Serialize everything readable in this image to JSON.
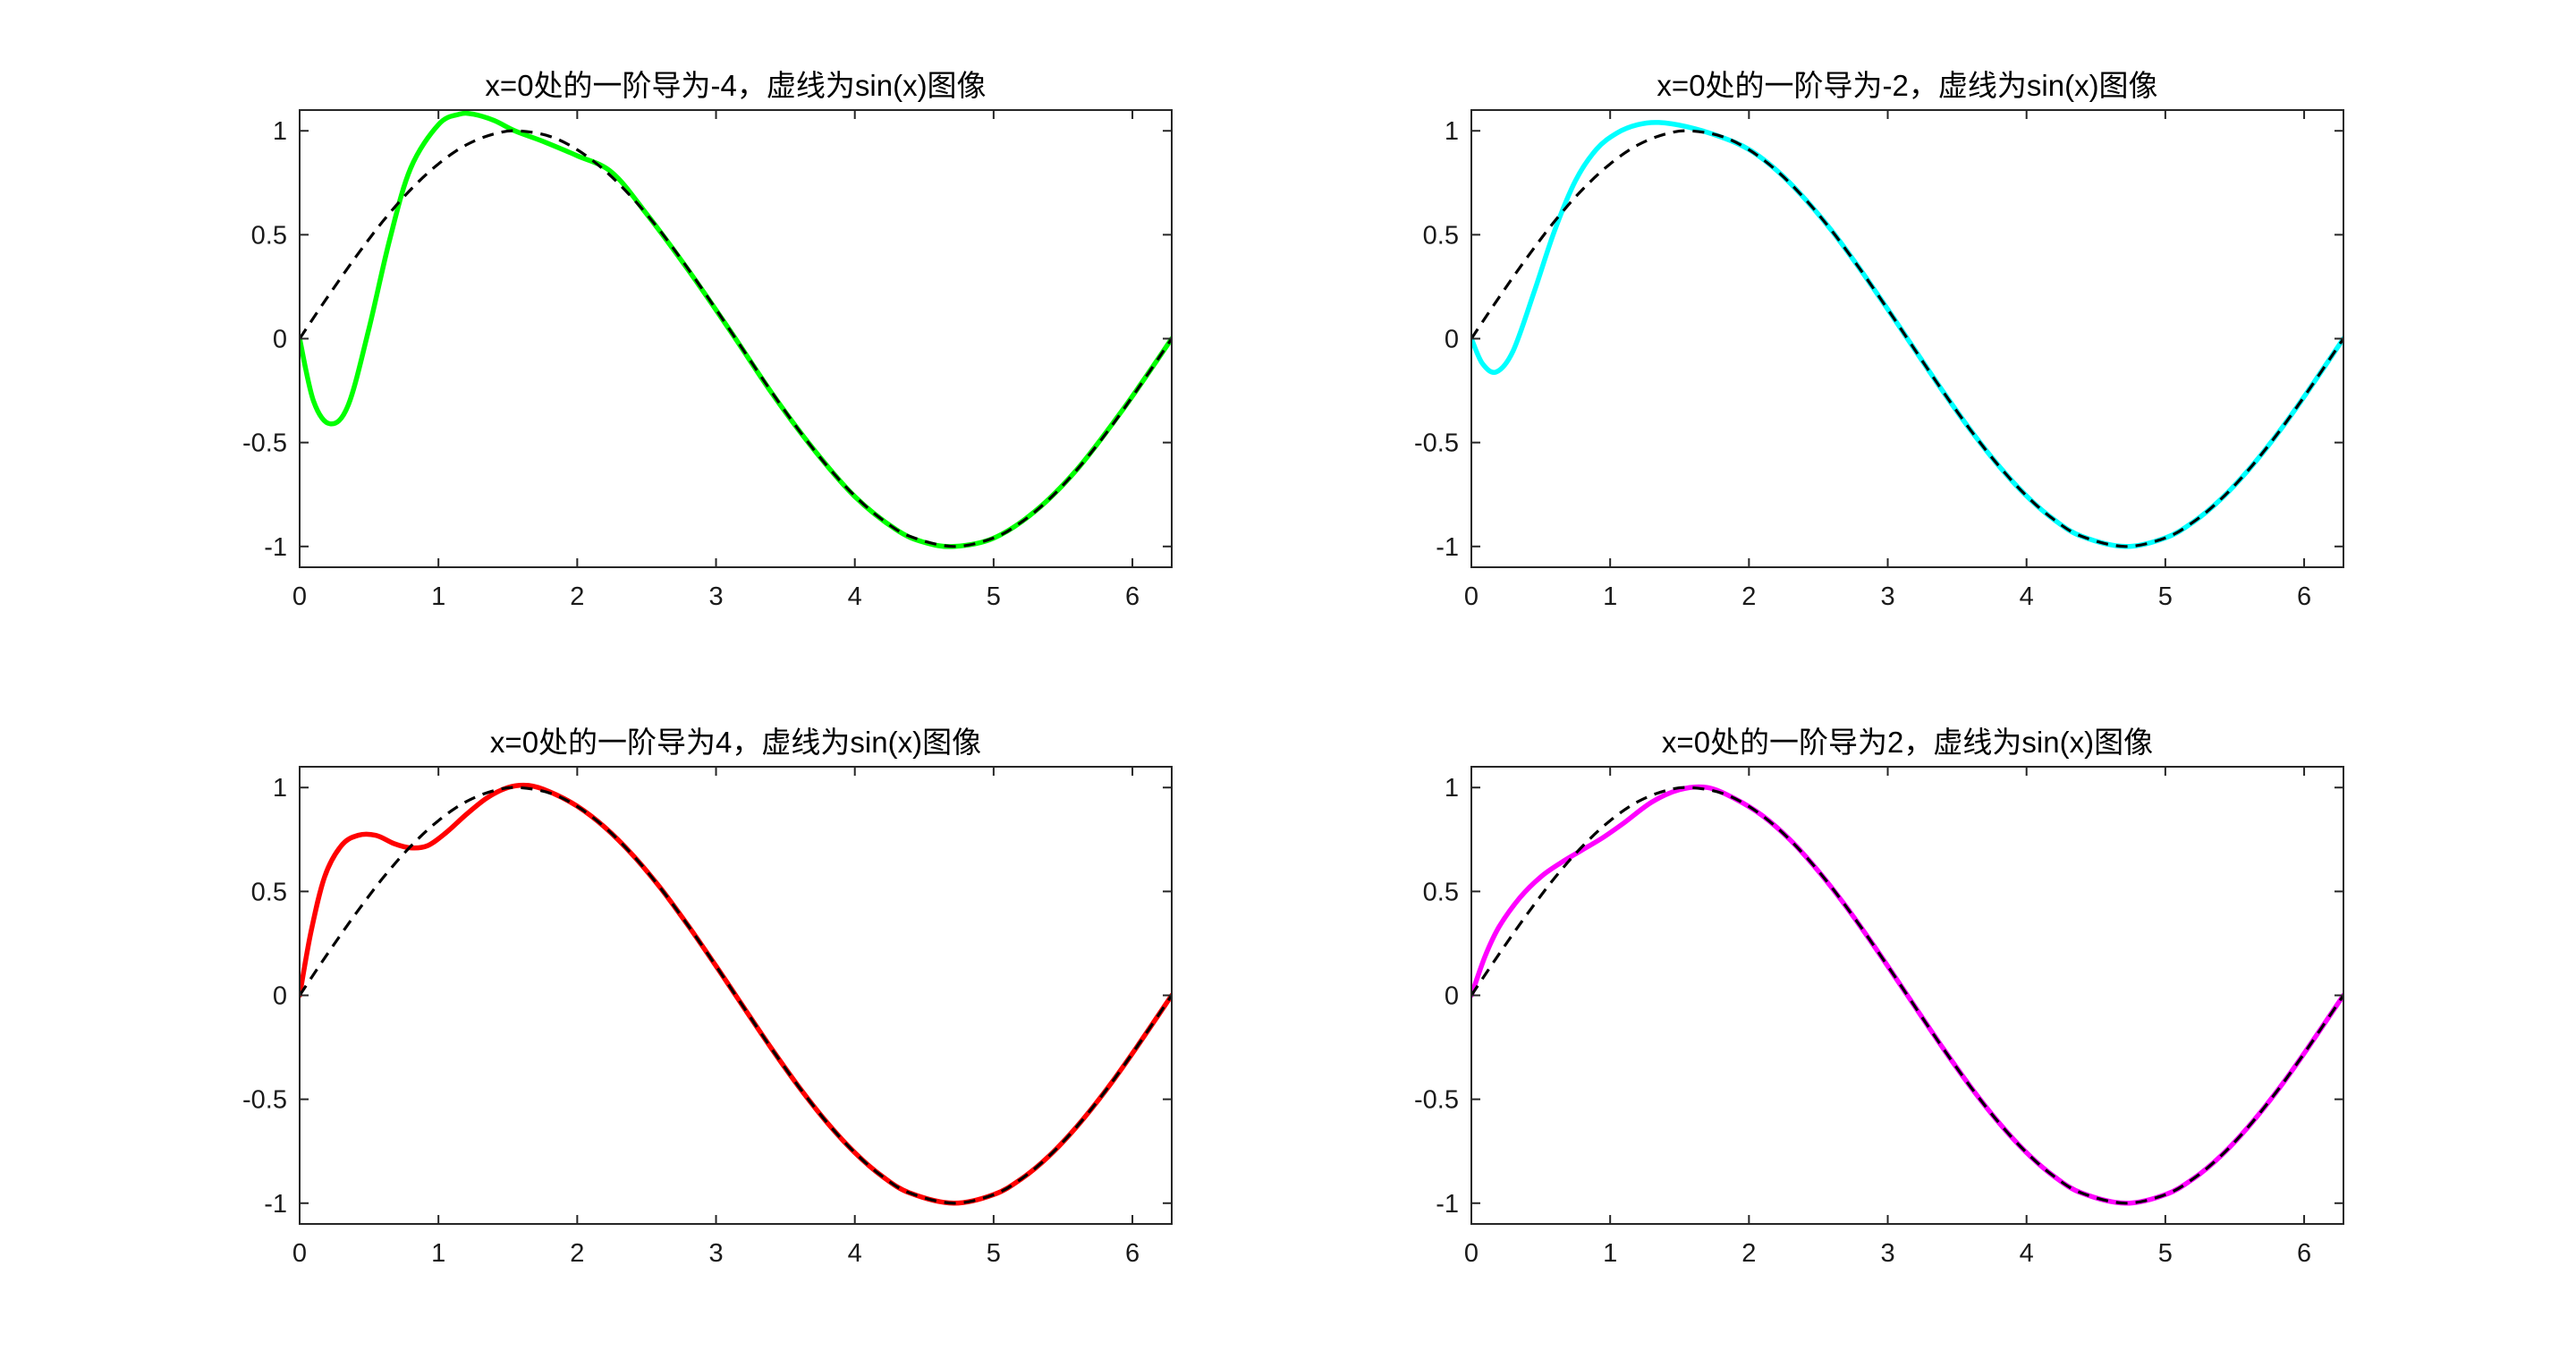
{
  "figure": {
    "background": "#ffffff",
    "reference_color": "#000000"
  },
  "chart_data": [
    {
      "type": "line",
      "title": "x=0处的一阶导为-4，虚线为sin(x)图像",
      "xlim": [
        0,
        6.2832
      ],
      "ylim": [
        -1.1,
        1.1
      ],
      "xticks": [
        0,
        1,
        2,
        3,
        4,
        5,
        6
      ],
      "xtick_labels": [
        "0",
        "1",
        "2",
        "3",
        "4",
        "5",
        "6"
      ],
      "yticks": [
        -1,
        -0.5,
        0,
        0.5,
        1
      ],
      "ytick_labels": [
        "-1",
        "-0.5",
        "0",
        "0.5",
        "1"
      ],
      "grid": false,
      "series": [
        {
          "color": "#00ff00",
          "style": "solid",
          "x": [
            0,
            0.1,
            0.22,
            0.35,
            0.5,
            0.65,
            0.8,
            1.0,
            1.15,
            1.25,
            1.4,
            1.55,
            1.75,
            2.0,
            2.25,
            2.5,
            2.8,
            3.1,
            3.4,
            3.7,
            4.0,
            4.3,
            4.5,
            4.712,
            5.0,
            5.3,
            5.6,
            5.9,
            6.1,
            6.2832
          ],
          "y": [
            0,
            -0.3,
            -0.41,
            -0.32,
            0.05,
            0.48,
            0.82,
            1.03,
            1.08,
            1.08,
            1.05,
            1.0,
            0.95,
            0.88,
            0.8,
            0.6,
            0.33,
            0.04,
            -0.26,
            -0.53,
            -0.76,
            -0.92,
            -0.98,
            -1.0,
            -0.96,
            -0.83,
            -0.63,
            -0.37,
            -0.18,
            0
          ]
        },
        {
          "color": "#000000",
          "style": "dashed",
          "function": "sin(x)",
          "x": [
            0,
            0.2,
            0.4,
            0.6,
            0.8,
            1.0,
            1.2,
            1.4,
            1.5708,
            1.8,
            2.0,
            2.2,
            2.4,
            2.6,
            2.8,
            3.0,
            3.1416,
            3.4,
            3.6,
            3.8,
            4.0,
            4.2,
            4.4,
            4.712,
            5.0,
            5.2,
            5.4,
            5.6,
            5.8,
            6.0,
            6.2832
          ],
          "y": [
            0,
            0.199,
            0.389,
            0.565,
            0.717,
            0.841,
            0.932,
            0.985,
            1.0,
            0.974,
            0.909,
            0.808,
            0.675,
            0.516,
            0.335,
            0.141,
            0,
            -0.256,
            -0.443,
            -0.612,
            -0.757,
            -0.872,
            -0.952,
            -1.0,
            -0.959,
            -0.883,
            -0.773,
            -0.631,
            -0.465,
            -0.279,
            0
          ]
        }
      ]
    },
    {
      "type": "line",
      "title": "x=0处的一阶导为-2，虚线为sin(x)图像",
      "xlim": [
        0,
        6.2832
      ],
      "ylim": [
        -1.1,
        1.1
      ],
      "xticks": [
        0,
        1,
        2,
        3,
        4,
        5,
        6
      ],
      "xtick_labels": [
        "0",
        "1",
        "2",
        "3",
        "4",
        "5",
        "6"
      ],
      "yticks": [
        -1,
        -0.5,
        0,
        0.5,
        1
      ],
      "ytick_labels": [
        "-1",
        "-0.5",
        "0",
        "0.5",
        "1"
      ],
      "grid": false,
      "series": [
        {
          "color": "#00ffff",
          "style": "solid",
          "x": [
            0,
            0.08,
            0.18,
            0.3,
            0.45,
            0.6,
            0.75,
            0.9,
            1.05,
            1.2,
            1.35,
            1.55,
            1.8,
            2.0,
            2.2,
            2.4,
            2.6,
            2.8,
            3.0,
            3.1416,
            3.4,
            3.6,
            3.8,
            4.0,
            4.2,
            4.4,
            4.712,
            5.0,
            5.2,
            5.4,
            5.6,
            5.8,
            6.0,
            6.2832
          ],
          "y": [
            0,
            -0.12,
            -0.16,
            -0.06,
            0.22,
            0.52,
            0.76,
            0.91,
            0.99,
            1.03,
            1.04,
            1.02,
            0.97,
            0.91,
            0.81,
            0.675,
            0.516,
            0.335,
            0.141,
            0,
            -0.256,
            -0.443,
            -0.612,
            -0.757,
            -0.872,
            -0.952,
            -1.0,
            -0.959,
            -0.883,
            -0.773,
            -0.631,
            -0.465,
            -0.279,
            0
          ]
        },
        {
          "color": "#000000",
          "style": "dashed",
          "function": "sin(x)",
          "x": [
            0,
            0.2,
            0.4,
            0.6,
            0.8,
            1.0,
            1.2,
            1.4,
            1.5708,
            1.8,
            2.0,
            2.2,
            2.4,
            2.6,
            2.8,
            3.0,
            3.1416,
            3.4,
            3.6,
            3.8,
            4.0,
            4.2,
            4.4,
            4.712,
            5.0,
            5.2,
            5.4,
            5.6,
            5.8,
            6.0,
            6.2832
          ],
          "y": [
            0,
            0.199,
            0.389,
            0.565,
            0.717,
            0.841,
            0.932,
            0.985,
            1.0,
            0.974,
            0.909,
            0.808,
            0.675,
            0.516,
            0.335,
            0.141,
            0,
            -0.256,
            -0.443,
            -0.612,
            -0.757,
            -0.872,
            -0.952,
            -1.0,
            -0.959,
            -0.883,
            -0.773,
            -0.631,
            -0.465,
            -0.279,
            0
          ]
        }
      ]
    },
    {
      "type": "line",
      "title": "x=0处的一阶导为4，虚线为sin(x)图像",
      "xlim": [
        0,
        6.2832
      ],
      "ylim": [
        -1.1,
        1.1
      ],
      "xticks": [
        0,
        1,
        2,
        3,
        4,
        5,
        6
      ],
      "xtick_labels": [
        "0",
        "1",
        "2",
        "3",
        "4",
        "5",
        "6"
      ],
      "yticks": [
        -1,
        -0.5,
        0,
        0.5,
        1
      ],
      "ytick_labels": [
        "-1",
        "-0.5",
        "0",
        "0.5",
        "1"
      ],
      "grid": false,
      "series": [
        {
          "color": "#ff0000",
          "style": "solid",
          "x": [
            0,
            0.08,
            0.18,
            0.3,
            0.42,
            0.55,
            0.68,
            0.8,
            0.92,
            1.05,
            1.2,
            1.35,
            1.5,
            1.65,
            1.8,
            2.0,
            2.2,
            2.4,
            2.6,
            2.8,
            3.0,
            3.1416,
            3.4,
            3.6,
            3.8,
            4.0,
            4.2,
            4.4,
            4.712,
            5.0,
            5.2,
            5.4,
            5.6,
            5.8,
            6.0,
            6.2832
          ],
          "y": [
            0,
            0.3,
            0.57,
            0.72,
            0.77,
            0.77,
            0.73,
            0.71,
            0.72,
            0.78,
            0.87,
            0.95,
            1.0,
            1.01,
            0.98,
            0.91,
            0.808,
            0.675,
            0.516,
            0.335,
            0.141,
            0,
            -0.256,
            -0.443,
            -0.612,
            -0.757,
            -0.872,
            -0.952,
            -1.0,
            -0.959,
            -0.883,
            -0.773,
            -0.631,
            -0.465,
            -0.279,
            0
          ]
        },
        {
          "color": "#000000",
          "style": "dashed",
          "function": "sin(x)",
          "x": [
            0,
            0.2,
            0.4,
            0.6,
            0.8,
            1.0,
            1.2,
            1.4,
            1.5708,
            1.8,
            2.0,
            2.2,
            2.4,
            2.6,
            2.8,
            3.0,
            3.1416,
            3.4,
            3.6,
            3.8,
            4.0,
            4.2,
            4.4,
            4.712,
            5.0,
            5.2,
            5.4,
            5.6,
            5.8,
            6.0,
            6.2832
          ],
          "y": [
            0,
            0.199,
            0.389,
            0.565,
            0.717,
            0.841,
            0.932,
            0.985,
            1.0,
            0.974,
            0.909,
            0.808,
            0.675,
            0.516,
            0.335,
            0.141,
            0,
            -0.256,
            -0.443,
            -0.612,
            -0.757,
            -0.872,
            -0.952,
            -1.0,
            -0.959,
            -0.883,
            -0.773,
            -0.631,
            -0.465,
            -0.279,
            0
          ]
        }
      ]
    },
    {
      "type": "line",
      "title": "x=0处的一阶导为2，虚线为sin(x)图像",
      "xlim": [
        0,
        6.2832
      ],
      "ylim": [
        -1.1,
        1.1
      ],
      "xticks": [
        0,
        1,
        2,
        3,
        4,
        5,
        6
      ],
      "xtick_labels": [
        "0",
        "1",
        "2",
        "3",
        "4",
        "5",
        "6"
      ],
      "yticks": [
        -1,
        -0.5,
        0,
        0.5,
        1
      ],
      "ytick_labels": [
        "-1",
        "-0.5",
        "0",
        "0.5",
        "1"
      ],
      "grid": false,
      "series": [
        {
          "color": "#ff00ff",
          "style": "solid",
          "x": [
            0,
            0.1,
            0.2,
            0.35,
            0.5,
            0.65,
            0.8,
            0.95,
            1.1,
            1.3,
            1.5,
            1.7,
            1.9,
            2.1,
            2.3,
            2.5,
            2.7,
            2.9,
            3.1416,
            3.4,
            3.6,
            3.8,
            4.0,
            4.2,
            4.4,
            4.712,
            5.0,
            5.2,
            5.4,
            5.6,
            5.8,
            6.0,
            6.2832
          ],
          "y": [
            0,
            0.19,
            0.33,
            0.47,
            0.57,
            0.64,
            0.7,
            0.76,
            0.83,
            0.93,
            0.99,
            1.0,
            0.946,
            0.863,
            0.746,
            0.598,
            0.427,
            0.239,
            0,
            -0.256,
            -0.443,
            -0.612,
            -0.757,
            -0.872,
            -0.952,
            -1.0,
            -0.959,
            -0.883,
            -0.773,
            -0.631,
            -0.465,
            -0.279,
            0
          ]
        },
        {
          "color": "#000000",
          "style": "dashed",
          "function": "sin(x)",
          "x": [
            0,
            0.2,
            0.4,
            0.6,
            0.8,
            1.0,
            1.2,
            1.4,
            1.5708,
            1.8,
            2.0,
            2.2,
            2.4,
            2.6,
            2.8,
            3.0,
            3.1416,
            3.4,
            3.6,
            3.8,
            4.0,
            4.2,
            4.4,
            4.712,
            5.0,
            5.2,
            5.4,
            5.6,
            5.8,
            6.0,
            6.2832
          ],
          "y": [
            0,
            0.199,
            0.389,
            0.565,
            0.717,
            0.841,
            0.932,
            0.985,
            1.0,
            0.974,
            0.909,
            0.808,
            0.675,
            0.516,
            0.335,
            0.141,
            0,
            -0.256,
            -0.443,
            -0.612,
            -0.757,
            -0.872,
            -0.952,
            -1.0,
            -0.959,
            -0.883,
            -0.773,
            -0.631,
            -0.465,
            -0.279,
            0
          ]
        }
      ]
    }
  ]
}
